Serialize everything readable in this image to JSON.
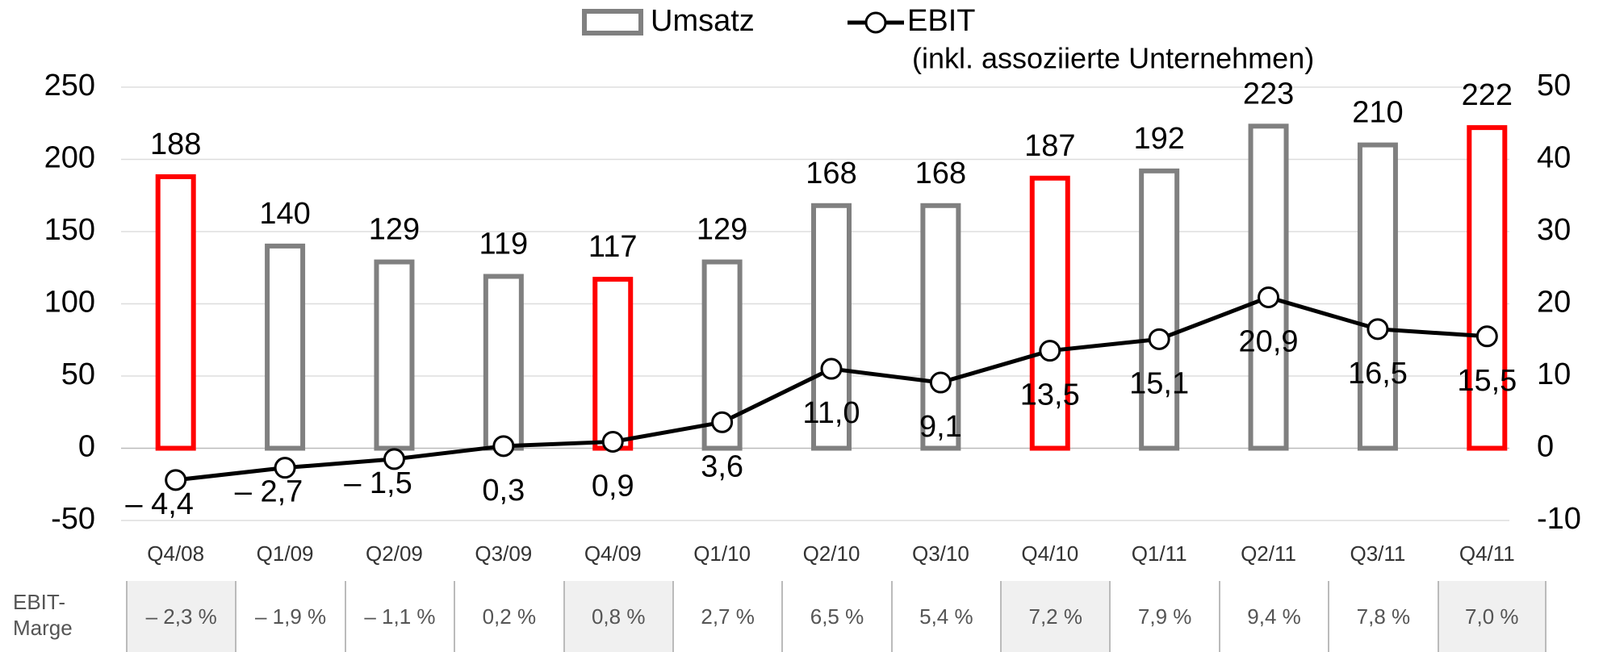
{
  "chart_data": {
    "type": "combo",
    "categories": [
      "Q4/08",
      "Q1/09",
      "Q2/09",
      "Q3/09",
      "Q4/09",
      "Q1/10",
      "Q2/10",
      "Q3/10",
      "Q4/10",
      "Q1/11",
      "Q2/11",
      "Q3/11",
      "Q4/11"
    ],
    "series": [
      {
        "name": "Umsatz",
        "type": "bar",
        "color": "#808080",
        "colors": [
          "#ff0000",
          "#808080",
          "#808080",
          "#808080",
          "#ff0000",
          "#808080",
          "#808080",
          "#808080",
          "#ff0000",
          "#808080",
          "#808080",
          "#808080",
          "#ff0000"
        ],
        "values": [
          188,
          140,
          129,
          119,
          117,
          129,
          168,
          168,
          187,
          192,
          223,
          210,
          222
        ]
      },
      {
        "name": "EBIT",
        "type": "line",
        "axis": "y2",
        "color": "#000000",
        "values": [
          -4.4,
          -2.7,
          -1.5,
          0.3,
          0.9,
          3.6,
          11.0,
          9.1,
          13.5,
          15.1,
          20.9,
          16.5,
          15.5
        ],
        "value_labels": [
          "– 4,4",
          "– 2,7",
          "– 1,5",
          "0,3",
          "0,9",
          "3,6",
          "11,0",
          "9,1",
          "13,5",
          "15,1",
          "20,9",
          "16,5",
          "15,5"
        ]
      }
    ],
    "legend_note": "(inkl. assoziierte Unternehmen)",
    "ylim": [
      -50,
      250
    ],
    "yticks": [
      -50,
      0,
      50,
      100,
      150,
      200,
      250
    ],
    "y2lim": [
      -10,
      50
    ],
    "y2ticks": [
      -10,
      0,
      10,
      20,
      30,
      40,
      50
    ],
    "grid": true
  },
  "table": {
    "label": "EBIT-Marge",
    "cells": [
      "– 2,3 %",
      "– 1,9 %",
      "– 1,1 %",
      "0,2 %",
      "0,8 %",
      "2,7 %",
      "6,5 %",
      "5,4 %",
      "7,2 %",
      "7,9 %",
      "9,4 %",
      "7,8 %",
      "7,0 %"
    ],
    "shaded": [
      true,
      false,
      false,
      false,
      true,
      false,
      false,
      false,
      true,
      false,
      false,
      false,
      true
    ]
  }
}
